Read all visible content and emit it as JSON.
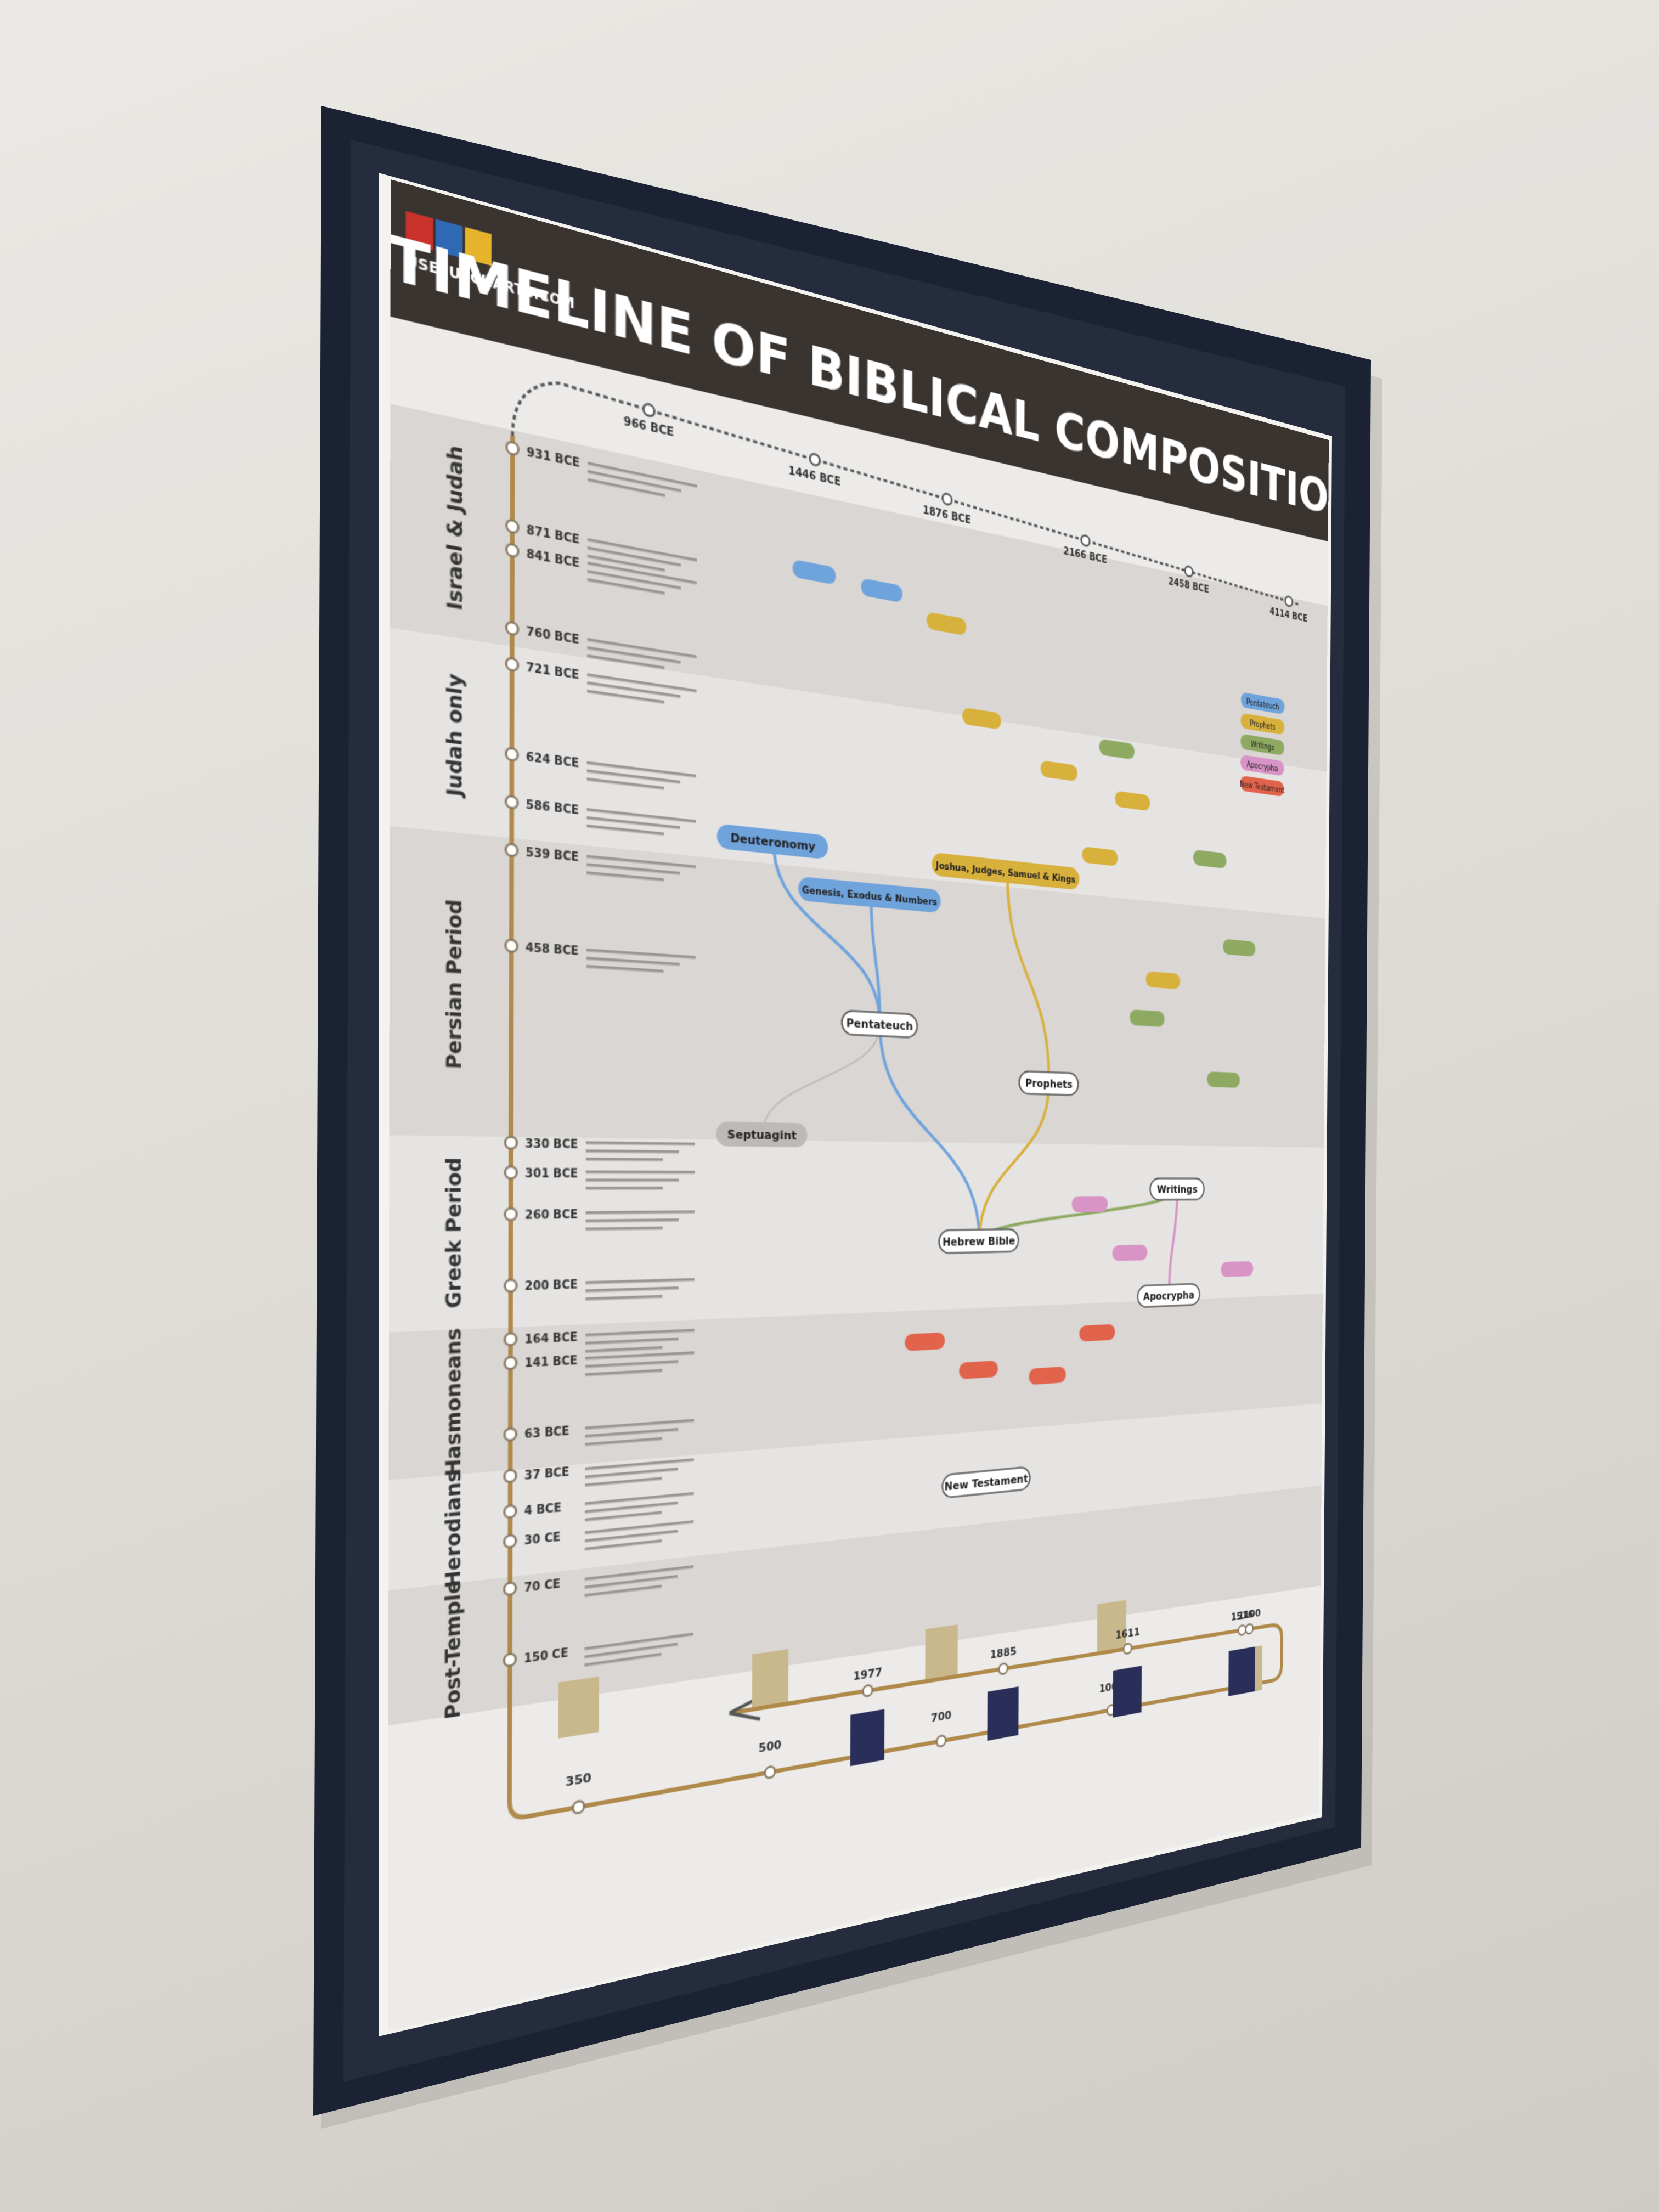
{
  "poster": {
    "logo": "USEFULCHARTS.COM",
    "title": "TIMELINE OF BIBLICAL COMPOSITION",
    "periods": [
      "Israel & Judah",
      "Judah only",
      "Persian Period",
      "Greek Period",
      "Hasmoneans",
      "Herodians",
      "Post-Temple"
    ],
    "events": [
      "931 BCE",
      "871 BCE",
      "841 BCE",
      "760 BCE",
      "721 BCE",
      "624 BCE",
      "586 BCE",
      "539 BCE",
      "458 BCE",
      "330 BCE",
      "301 BCE",
      "260 BCE",
      "200 BCE",
      "164 BCE",
      "141 BCE",
      "63 BCE",
      "37 BCE",
      "4 BCE",
      "30 CE",
      "70 CE",
      "150 CE"
    ],
    "top_timeline": [
      "966 BCE",
      "1446 BCE",
      "1876 BCE",
      "2166 BCE",
      "2458 BCE",
      "4114 BCE"
    ],
    "nodes": [
      "Deuteronomy",
      "Genesis, Exodus & Numbers",
      "Joshua, Judges, Samuel & Kings",
      "Pentateuch",
      "Prophets",
      "Writings",
      "Septuagint",
      "Hebrew Bible",
      "Apocrypha",
      "New Testament"
    ],
    "legend": [
      "Pentateuch",
      "Prophets",
      "Writings",
      "Apocrypha",
      "New Testament"
    ],
    "bottom_timeline": [
      "350",
      "500",
      "700",
      "1000",
      "1100",
      "1516",
      "1611",
      "1885",
      "1977"
    ]
  }
}
